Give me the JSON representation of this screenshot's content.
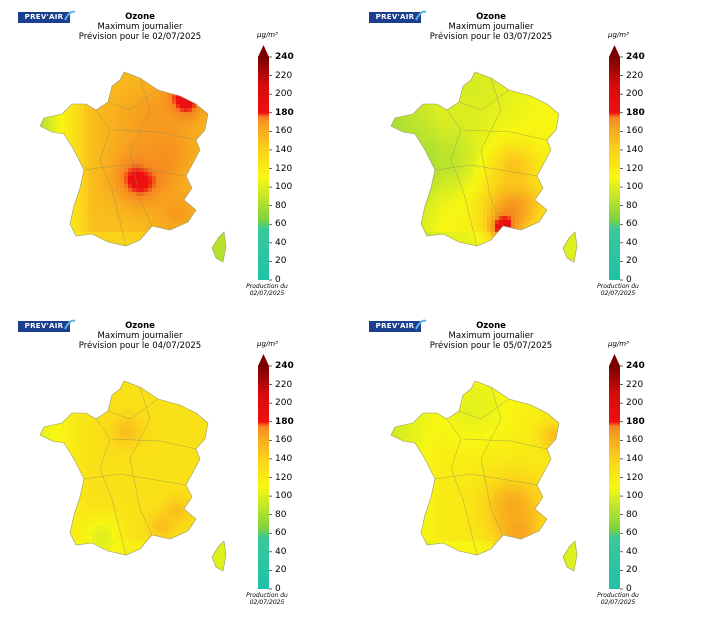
{
  "panels": [
    {
      "logo": "PREV'AIR",
      "title": "Ozone",
      "subtitle": "Maximum journalier",
      "forecast": "Prévision pour le 02/07/2025",
      "unit": "µg/m³",
      "production": "Production du 02/07/2025",
      "scenario": "hot"
    },
    {
      "logo": "PREV'AIR",
      "title": "Ozone",
      "subtitle": "Maximum journalier",
      "forecast": "Prévision pour le 03/07/2025",
      "unit": "µg/m³",
      "production": "Production du 02/07/2025",
      "scenario": "mid"
    },
    {
      "logo": "PREV'AIR",
      "title": "Ozone",
      "subtitle": "Maximum journalier",
      "forecast": "Prévision pour le 04/07/2025",
      "unit": "µg/m³",
      "production": "Production du 02/07/2025",
      "scenario": "mild"
    },
    {
      "logo": "PREV'AIR",
      "title": "Ozone",
      "subtitle": "Maximum journalier",
      "forecast": "Prévision pour le 05/07/2025",
      "unit": "µg/m³",
      "production": "Production du 02/07/2025",
      "scenario": "mild2"
    }
  ],
  "colorbar": {
    "ticks": [
      "0",
      "20",
      "40",
      "60",
      "80",
      "100",
      "120",
      "140",
      "160",
      "180",
      "200",
      "220",
      "240"
    ],
    "bold_ticks": [
      "180",
      "240"
    ],
    "stops": [
      {
        "v": 0,
        "c": "#1fc2a8"
      },
      {
        "v": 55,
        "c": "#3ac89b"
      },
      {
        "v": 65,
        "c": "#7dd33c"
      },
      {
        "v": 90,
        "c": "#c4e62a"
      },
      {
        "v": 110,
        "c": "#f7f712"
      },
      {
        "v": 140,
        "c": "#fbd21a"
      },
      {
        "v": 165,
        "c": "#f7a31e"
      },
      {
        "v": 175,
        "c": "#f68620"
      },
      {
        "v": 180,
        "c": "#ef1010"
      },
      {
        "v": 210,
        "c": "#d60b0b"
      },
      {
        "v": 240,
        "c": "#7a0000"
      }
    ]
  }
}
